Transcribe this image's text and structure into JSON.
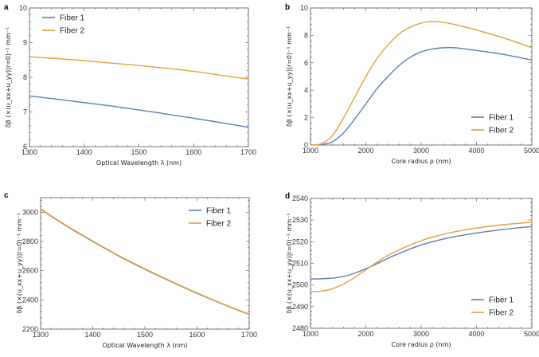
{
  "colors": {
    "fiber1": "#5a7fb5",
    "fiber2": "#e6a03c",
    "axis": "#555555"
  },
  "chart_data": [
    {
      "panel": "a",
      "type": "line",
      "xlabel": "Optical Wavelength λ (nm)",
      "ylabel": "δβ (×(u_xx+u_yy)|r=0)⁻¹ mm⁻¹",
      "xlim": [
        1300,
        1700
      ],
      "ylim": [
        6,
        10
      ],
      "xticks": [
        1300,
        1400,
        1500,
        1600,
        1700
      ],
      "yticks": [
        6,
        7,
        8,
        9,
        10
      ],
      "legend": "top-left",
      "series": [
        {
          "name": "Fiber 1",
          "x": [
            1300,
            1350,
            1400,
            1450,
            1500,
            1550,
            1600,
            1650,
            1700
          ],
          "y": [
            7.46,
            7.37,
            7.27,
            7.17,
            7.06,
            6.94,
            6.82,
            6.69,
            6.56
          ]
        },
        {
          "name": "Fiber 2",
          "x": [
            1300,
            1350,
            1400,
            1450,
            1500,
            1550,
            1600,
            1650,
            1700
          ],
          "y": [
            8.59,
            8.54,
            8.48,
            8.41,
            8.34,
            8.26,
            8.17,
            8.06,
            7.95
          ]
        }
      ]
    },
    {
      "panel": "b",
      "type": "line",
      "xlabel": "Core radius ρ (nm)",
      "ylabel": "δβ (×(u_xx+u_yy)|r=0)⁻¹ mm⁻¹",
      "xlim": [
        1000,
        5000
      ],
      "ylim": [
        0,
        10
      ],
      "xticks": [
        1000,
        2000,
        3000,
        4000,
        5000
      ],
      "yticks": [
        0,
        2,
        4,
        6,
        8,
        10
      ],
      "legend": "bottom-right",
      "series": [
        {
          "name": "Fiber 1",
          "x": [
            1000,
            1200,
            1400,
            1600,
            1800,
            2000,
            2200,
            2400,
            2600,
            2800,
            3000,
            3200,
            3400,
            3600,
            3800,
            4000,
            4500,
            5000
          ],
          "y": [
            0,
            0.03,
            0.25,
            0.9,
            1.9,
            3.0,
            4.1,
            5.0,
            5.8,
            6.4,
            6.8,
            7.0,
            7.1,
            7.1,
            7.0,
            6.9,
            6.6,
            6.2
          ]
        },
        {
          "name": "Fiber 2",
          "x": [
            1000,
            1200,
            1400,
            1600,
            1800,
            2000,
            2200,
            2400,
            2600,
            2800,
            3000,
            3200,
            3400,
            3600,
            3800,
            4000,
            4500,
            5000
          ],
          "y": [
            0,
            0.1,
            0.7,
            2.0,
            3.5,
            5.0,
            6.3,
            7.3,
            8.1,
            8.6,
            8.9,
            9.0,
            8.95,
            8.8,
            8.6,
            8.4,
            7.8,
            7.1
          ]
        }
      ]
    },
    {
      "panel": "c",
      "type": "line",
      "xlabel": "Optical Wavelength λ (nm)",
      "ylabel": "δβ (×(u_xx+u_yy)|r=0)⁻¹ mm⁻¹",
      "xlim": [
        1300,
        1700
      ],
      "ylim": [
        2200,
        3100
      ],
      "xticks": [
        1300,
        1400,
        1500,
        1600,
        1700
      ],
      "yticks": [
        2200,
        2400,
        2600,
        2800,
        3000
      ],
      "legend": "top-right",
      "series": [
        {
          "name": "Fiber 1",
          "x": [
            1300,
            1350,
            1400,
            1450,
            1500,
            1550,
            1600,
            1650,
            1700
          ],
          "y": [
            3020,
            2905,
            2800,
            2700,
            2610,
            2525,
            2445,
            2370,
            2300
          ]
        },
        {
          "name": "Fiber 2",
          "x": [
            1300,
            1350,
            1400,
            1450,
            1500,
            1550,
            1600,
            1650,
            1700
          ],
          "y": [
            3023,
            2908,
            2803,
            2703,
            2613,
            2528,
            2448,
            2372,
            2302
          ]
        }
      ]
    },
    {
      "panel": "d",
      "type": "line",
      "xlabel": "Core radius ρ (nm)",
      "ylabel": "δβ (×(u_xx+u_yy)|r=0)⁻¹ mm⁻¹",
      "xlim": [
        1000,
        5000
      ],
      "ylim": [
        2480,
        2540
      ],
      "xticks": [
        1000,
        2000,
        3000,
        4000,
        5000
      ],
      "yticks": [
        2480,
        2490,
        2500,
        2510,
        2520,
        2530,
        2540
      ],
      "legend": "bottom-right",
      "series": [
        {
          "name": "Fiber 1",
          "x": [
            1000,
            1200,
            1400,
            1600,
            1800,
            2000,
            2200,
            2500,
            3000,
            3500,
            4000,
            4500,
            5000
          ],
          "y": [
            2502.8,
            2502.9,
            2503.2,
            2504.0,
            2505.5,
            2507.5,
            2509.8,
            2513.5,
            2518.5,
            2521.8,
            2524.0,
            2525.7,
            2527.0
          ]
        },
        {
          "name": "Fiber 2",
          "x": [
            1000,
            1200,
            1400,
            1600,
            1800,
            2000,
            2200,
            2500,
            3000,
            3500,
            4000,
            4500,
            5000
          ],
          "y": [
            2497.0,
            2497.2,
            2498.3,
            2500.5,
            2503.5,
            2507.0,
            2510.5,
            2515.0,
            2520.5,
            2524.0,
            2526.3,
            2527.9,
            2529.0
          ]
        }
      ]
    }
  ]
}
